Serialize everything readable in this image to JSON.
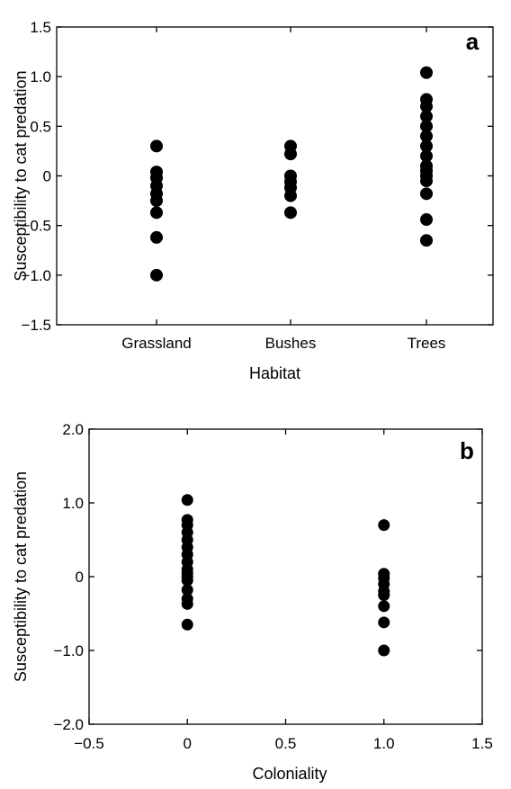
{
  "chart_data": [
    {
      "type": "scatter",
      "panel_label": "a",
      "xlabel": "Habitat",
      "ylabel": "Susceptibility to cat predation",
      "categories": [
        "Grassland",
        "Bushes",
        "Trees"
      ],
      "ylim": [
        -1.5,
        1.5
      ],
      "yticks": [
        1.5,
        1.0,
        0.5,
        0,
        -0.5,
        -1.0,
        -1.5
      ],
      "ytick_labels": [
        "1.5",
        "1.0",
        "0.5",
        "0",
        "−0.5",
        "−1.0",
        "−1.5"
      ],
      "grid": false,
      "marker_color": "#000000",
      "series": [
        {
          "category": "Grassland",
          "values": [
            0.3,
            0.04,
            -0.02,
            -0.1,
            -0.18,
            -0.25,
            -0.37,
            -0.62,
            -1.0
          ]
        },
        {
          "category": "Bushes",
          "values": [
            0.3,
            0.22,
            0.0,
            -0.06,
            -0.12,
            -0.2,
            -0.37
          ]
        },
        {
          "category": "Trees",
          "values": [
            1.04,
            0.77,
            0.7,
            0.6,
            0.5,
            0.4,
            0.3,
            0.2,
            0.1,
            0.05,
            0.0,
            -0.05,
            -0.18,
            -0.44,
            -0.65
          ]
        }
      ]
    },
    {
      "type": "scatter",
      "panel_label": "b",
      "xlabel": "Coloniality",
      "ylabel": "Susceptibility to cat predation",
      "xlim": [
        -0.5,
        1.5
      ],
      "ylim": [
        -2.0,
        2.0
      ],
      "xticks": [
        -0.5,
        0,
        0.5,
        1.0,
        1.5
      ],
      "xtick_labels": [
        "−0.5",
        "0",
        "0.5",
        "1.0",
        "1.5"
      ],
      "yticks": [
        2.0,
        1.0,
        0,
        -1.0,
        -2.0
      ],
      "ytick_labels": [
        "2.0",
        "1.0",
        "0",
        "−1.0",
        "−2.0"
      ],
      "grid": false,
      "marker_color": "#000000",
      "series": [
        {
          "x": 0,
          "values": [
            1.04,
            0.77,
            0.7,
            0.6,
            0.5,
            0.4,
            0.3,
            0.2,
            0.1,
            0.05,
            0.0,
            -0.05,
            -0.18,
            -0.3,
            -0.37,
            -0.65
          ]
        },
        {
          "x": 1.0,
          "values": [
            0.7,
            0.04,
            -0.02,
            -0.1,
            -0.2,
            -0.25,
            -0.4,
            -0.62,
            -1.0
          ]
        }
      ]
    }
  ]
}
